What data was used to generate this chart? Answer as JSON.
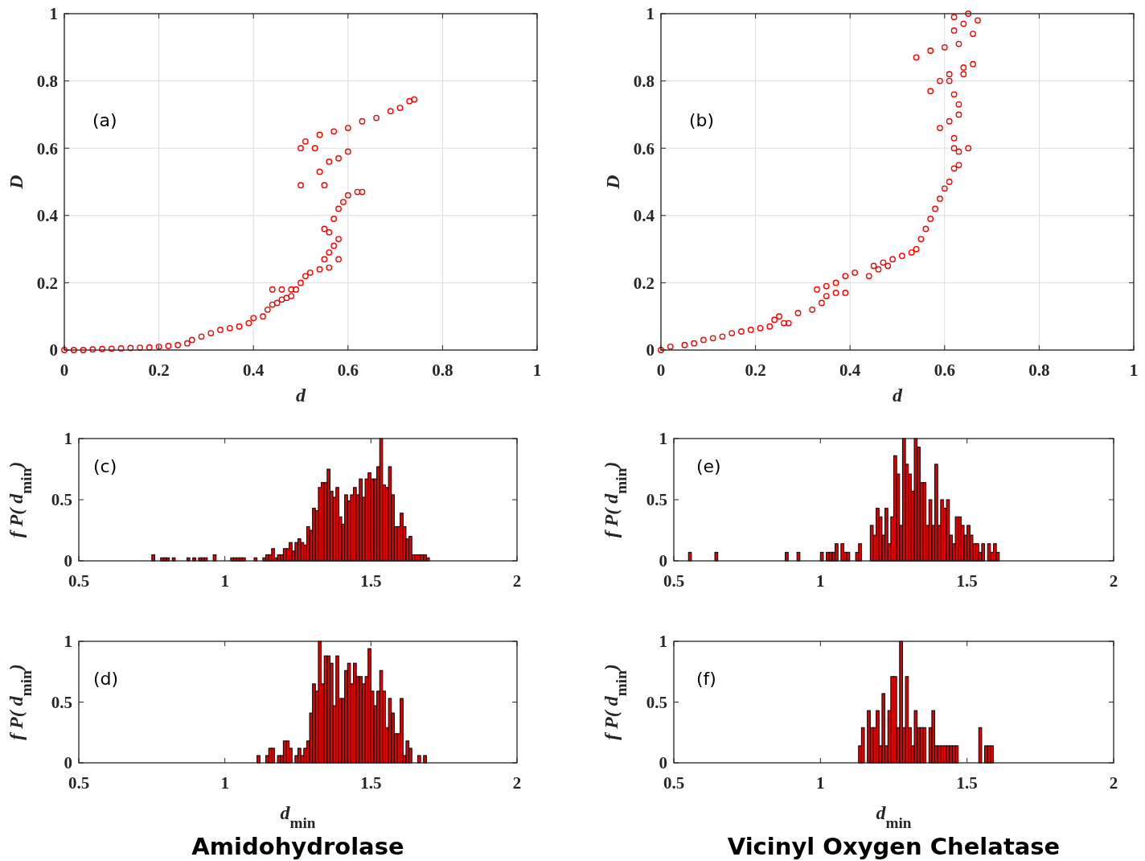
{
  "chart_data": [
    {
      "type": "scatter",
      "xlabel": "d",
      "ylabel": "D",
      "annotations": [
        "(a)"
      ],
      "color": "#ff0000",
      "marker": "circle",
      "grid": true,
      "xlim": [
        0,
        1
      ],
      "ylim": [
        0,
        1
      ],
      "xticks": [
        0,
        0.2,
        0.4,
        0.6,
        0.8,
        1
      ],
      "yticks": [
        0,
        0.2,
        0.4,
        0.6,
        0.8,
        1
      ],
      "x": [
        0,
        0.02,
        0.04,
        0.06,
        0.08,
        0.1,
        0.12,
        0.14,
        0.16,
        0.18,
        0.2,
        0.22,
        0.24,
        0.26,
        0.27,
        0.29,
        0.31,
        0.33,
        0.35,
        0.37,
        0.39,
        0.4,
        0.42,
        0.43,
        0.44,
        0.45,
        0.46,
        0.47,
        0.48,
        0.49,
        0.5,
        0.51,
        0.52,
        0.54,
        0.56,
        0.44,
        0.46,
        0.48,
        0.55,
        0.56,
        0.57,
        0.58,
        0.58,
        0.56,
        0.55,
        0.57,
        0.58,
        0.59,
        0.6,
        0.62,
        0.63,
        0.55,
        0.5,
        0.54,
        0.56,
        0.58,
        0.6,
        0.53,
        0.5,
        0.51,
        0.54,
        0.57,
        0.6,
        0.63,
        0.66,
        0.69,
        0.71,
        0.73,
        0.74
      ],
      "values": [
        0,
        0,
        0,
        0.002,
        0.003,
        0.004,
        0.005,
        0.006,
        0.007,
        0.008,
        0.01,
        0.012,
        0.015,
        0.02,
        0.03,
        0.04,
        0.05,
        0.06,
        0.065,
        0.07,
        0.08,
        0.095,
        0.1,
        0.12,
        0.135,
        0.14,
        0.15,
        0.155,
        0.16,
        0.18,
        0.2,
        0.22,
        0.23,
        0.24,
        0.245,
        0.18,
        0.18,
        0.18,
        0.27,
        0.29,
        0.31,
        0.33,
        0.27,
        0.35,
        0.36,
        0.39,
        0.42,
        0.44,
        0.46,
        0.47,
        0.47,
        0.49,
        0.49,
        0.53,
        0.56,
        0.57,
        0.59,
        0.6,
        0.6,
        0.62,
        0.64,
        0.65,
        0.66,
        0.68,
        0.69,
        0.71,
        0.72,
        0.74,
        0.745
      ]
    },
    {
      "type": "scatter",
      "xlabel": "d",
      "ylabel": "D",
      "annotations": [
        "(b)"
      ],
      "color": "#ff0000",
      "marker": "circle",
      "grid": true,
      "xlim": [
        0,
        1
      ],
      "ylim": [
        0,
        1
      ],
      "xticks": [
        0,
        0.2,
        0.4,
        0.6,
        0.8,
        1
      ],
      "yticks": [
        0,
        0.2,
        0.4,
        0.6,
        0.8,
        1
      ],
      "x": [
        0,
        0.02,
        0.05,
        0.07,
        0.09,
        0.11,
        0.13,
        0.15,
        0.17,
        0.19,
        0.21,
        0.23,
        0.24,
        0.25,
        0.26,
        0.27,
        0.29,
        0.32,
        0.33,
        0.35,
        0.37,
        0.39,
        0.41,
        0.34,
        0.35,
        0.37,
        0.39,
        0.44,
        0.45,
        0.47,
        0.49,
        0.46,
        0.48,
        0.51,
        0.53,
        0.54,
        0.55,
        0.56,
        0.57,
        0.58,
        0.59,
        0.6,
        0.61,
        0.62,
        0.63,
        0.63,
        0.65,
        0.62,
        0.62,
        0.59,
        0.61,
        0.63,
        0.63,
        0.62,
        0.57,
        0.59,
        0.61,
        0.64,
        0.66,
        0.61,
        0.64,
        0.54,
        0.57,
        0.6,
        0.63,
        0.66,
        0.62,
        0.64,
        0.67,
        0.62,
        0.65
      ],
      "values": [
        0,
        0.01,
        0.015,
        0.02,
        0.03,
        0.035,
        0.04,
        0.05,
        0.055,
        0.06,
        0.065,
        0.07,
        0.09,
        0.1,
        0.08,
        0.08,
        0.11,
        0.12,
        0.18,
        0.19,
        0.2,
        0.22,
        0.23,
        0.14,
        0.16,
        0.17,
        0.17,
        0.22,
        0.25,
        0.26,
        0.27,
        0.24,
        0.25,
        0.28,
        0.29,
        0.3,
        0.33,
        0.36,
        0.39,
        0.42,
        0.45,
        0.48,
        0.5,
        0.54,
        0.55,
        0.59,
        0.6,
        0.6,
        0.63,
        0.66,
        0.68,
        0.7,
        0.73,
        0.76,
        0.77,
        0.8,
        0.8,
        0.82,
        0.85,
        0.82,
        0.84,
        0.87,
        0.89,
        0.9,
        0.91,
        0.94,
        0.95,
        0.97,
        0.98,
        0.99,
        1
      ]
    },
    {
      "type": "histogram",
      "ylabel": "f P( d$_{min}$)",
      "annotations": [
        "(c)"
      ],
      "color": "#e60000",
      "xlim": [
        0.5,
        2
      ],
      "ylim": [
        0,
        1
      ],
      "xticks": [
        0.5,
        1,
        1.5,
        2
      ],
      "yticks": [
        0,
        0.5,
        1
      ],
      "bins": [
        0.75,
        0.76,
        0.77,
        0.78,
        0.79,
        0.8,
        0.81,
        0.82,
        0.83,
        0.84,
        0.85,
        0.86,
        0.87,
        0.88,
        0.89,
        0.9,
        0.91,
        0.92,
        0.93,
        0.94,
        0.95,
        0.96,
        0.97,
        0.98,
        0.99,
        1,
        1.01,
        1.02,
        1.03,
        1.04,
        1.05,
        1.06,
        1.07,
        1.08,
        1.09,
        1.1,
        1.11,
        1.12,
        1.13,
        1.14,
        1.15,
        1.16,
        1.17,
        1.18,
        1.19,
        1.2,
        1.21,
        1.22,
        1.23,
        1.24,
        1.25,
        1.26,
        1.27,
        1.28,
        1.29,
        1.3,
        1.31,
        1.32,
        1.33,
        1.34,
        1.35,
        1.36,
        1.37,
        1.38,
        1.39,
        1.4,
        1.41,
        1.42,
        1.43,
        1.44,
        1.45,
        1.46,
        1.47,
        1.48,
        1.49,
        1.5,
        1.51,
        1.52,
        1.53,
        1.54,
        1.55,
        1.56,
        1.57,
        1.58,
        1.59,
        1.6,
        1.61,
        1.62,
        1.63,
        1.64,
        1.65,
        1.66,
        1.67,
        1.68,
        1.69,
        1.7
      ],
      "values": [
        0.05,
        0,
        0,
        0.025,
        0.025,
        0.025,
        0,
        0.025,
        0,
        0,
        0,
        0,
        0.025,
        0,
        0.025,
        0,
        0.025,
        0.025,
        0.025,
        0,
        0,
        0.05,
        0,
        0,
        0,
        0,
        0,
        0.025,
        0.025,
        0.025,
        0.025,
        0.025,
        0,
        0,
        0,
        0.025,
        0,
        0,
        0.025,
        0.05,
        0.05,
        0.1,
        0.025,
        0.05,
        0.05,
        0.1,
        0.1,
        0.15,
        0.08,
        0.15,
        0.18,
        0.15,
        0.13,
        0.28,
        0.25,
        0.43,
        0.41,
        0.6,
        0.64,
        0.64,
        0.75,
        0.57,
        0.52,
        0.6,
        0.36,
        0.3,
        0.54,
        0.49,
        0.54,
        0.6,
        0.54,
        0.67,
        0.52,
        0.67,
        0.72,
        0.67,
        0.67,
        0.77,
        1,
        0.62,
        0.6,
        0.77,
        0.54,
        0.28,
        0.28,
        0.39,
        0.28,
        0.18,
        0.2,
        0.05,
        0.05,
        0.05,
        0.05,
        0.05,
        0.025
      ]
    },
    {
      "type": "histogram",
      "ylabel": "f P( d$_{min}$)",
      "annotations": [
        "(e)"
      ],
      "color": "#e60000",
      "xlim": [
        0.5,
        2
      ],
      "ylim": [
        0,
        1
      ],
      "xticks": [
        0.5,
        1,
        1.5,
        2
      ],
      "yticks": [
        0,
        0.5,
        1
      ],
      "bins": [
        0.55,
        0.56,
        0.57,
        0.58,
        0.59,
        0.6,
        0.61,
        0.62,
        0.63,
        0.64,
        0.65,
        0.66,
        0.67,
        0.68,
        0.69,
        0.7,
        0.71,
        0.72,
        0.73,
        0.74,
        0.75,
        0.76,
        0.77,
        0.78,
        0.79,
        0.8,
        0.81,
        0.82,
        0.83,
        0.84,
        0.85,
        0.86,
        0.87,
        0.88,
        0.89,
        0.9,
        0.91,
        0.92,
        0.93,
        0.94,
        0.95,
        0.96,
        0.97,
        0.98,
        0.99,
        1,
        1.01,
        1.02,
        1.03,
        1.04,
        1.05,
        1.06,
        1.07,
        1.08,
        1.09,
        1.1,
        1.11,
        1.12,
        1.13,
        1.14,
        1.15,
        1.16,
        1.17,
        1.18,
        1.19,
        1.2,
        1.21,
        1.22,
        1.23,
        1.24,
        1.25,
        1.26,
        1.27,
        1.28,
        1.29,
        1.3,
        1.31,
        1.32,
        1.33,
        1.34,
        1.35,
        1.36,
        1.37,
        1.38,
        1.39,
        1.4,
        1.41,
        1.42,
        1.43,
        1.44,
        1.45,
        1.46,
        1.47,
        1.48,
        1.49,
        1.5,
        1.51,
        1.52,
        1.53,
        1.54,
        1.55,
        1.56,
        1.57,
        1.58,
        1.59,
        1.6,
        1.61
      ],
      "values": [
        0.07,
        0,
        0,
        0,
        0,
        0,
        0,
        0,
        0,
        0.07,
        0,
        0,
        0,
        0,
        0,
        0,
        0,
        0,
        0,
        0,
        0,
        0,
        0,
        0,
        0,
        0,
        0,
        0,
        0,
        0,
        0,
        0,
        0,
        0.07,
        0,
        0,
        0,
        0.07,
        0,
        0,
        0,
        0,
        0,
        0,
        0,
        0.07,
        0,
        0.07,
        0.07,
        0.07,
        0.14,
        0,
        0.14,
        0.07,
        0.07,
        0,
        0,
        0.07,
        0.14,
        0,
        0,
        0,
        0.29,
        0.21,
        0.43,
        0.36,
        0.21,
        0.43,
        0.14,
        0.36,
        0.86,
        0.71,
        0.29,
        1,
        0.79,
        0.71,
        0.57,
        1,
        0.93,
        0.64,
        0.64,
        0.29,
        0.5,
        0.29,
        0.79,
        0.29,
        0.5,
        0.43,
        0.5,
        0.21,
        0.14,
        0.36,
        0.36,
        0.29,
        0.21,
        0.29,
        0.21,
        0.14,
        0.14,
        0.07,
        0.14,
        0,
        0.14,
        0.07,
        0.14,
        0.07
      ]
    },
    {
      "type": "histogram",
      "xlabel": "d$_{min}$",
      "ylabel": "f P( d$_{min}$)",
      "annotations": [
        "(d)",
        "Amidohydrolase"
      ],
      "color": "#e60000",
      "xlim": [
        0.5,
        2
      ],
      "ylim": [
        0,
        1
      ],
      "xticks": [
        0.5,
        1,
        1.5,
        2
      ],
      "yticks": [
        0,
        0.5,
        1
      ],
      "bins": [
        1.11,
        1.12,
        1.13,
        1.14,
        1.15,
        1.16,
        1.17,
        1.18,
        1.19,
        1.2,
        1.21,
        1.22,
        1.23,
        1.24,
        1.25,
        1.26,
        1.27,
        1.28,
        1.29,
        1.3,
        1.31,
        1.32,
        1.33,
        1.34,
        1.35,
        1.36,
        1.37,
        1.38,
        1.39,
        1.4,
        1.41,
        1.42,
        1.43,
        1.44,
        1.45,
        1.46,
        1.47,
        1.48,
        1.49,
        1.5,
        1.51,
        1.52,
        1.53,
        1.54,
        1.55,
        1.56,
        1.57,
        1.58,
        1.59,
        1.6,
        1.61,
        1.62,
        1.63,
        1.64,
        1.65,
        1.66,
        1.67,
        1.68,
        1.69
      ],
      "values": [
        0.06,
        0,
        0,
        0.06,
        0.12,
        0.12,
        0,
        0.06,
        0.06,
        0.18,
        0.18,
        0.12,
        0,
        0.06,
        0.12,
        0.06,
        0.12,
        0.18,
        0.41,
        0.65,
        0.59,
        1,
        0.65,
        0.88,
        0.88,
        0.82,
        0.47,
        0.88,
        0.53,
        0.53,
        0.76,
        0.82,
        0.65,
        0.82,
        0.71,
        0.71,
        0.65,
        0.71,
        0.94,
        0.59,
        0.47,
        0.59,
        0.76,
        0.59,
        0.29,
        0.53,
        0.41,
        0.24,
        0.24,
        0.53,
        0.06,
        0.18,
        0.12,
        0,
        0,
        0.06,
        0,
        0.06
      ]
    },
    {
      "type": "histogram",
      "xlabel": "d$_{min}$",
      "ylabel": "f P( d$_{min}$)",
      "annotations": [
        "(f)",
        "Vicinyl Oxygen Chelatase"
      ],
      "color": "#e60000",
      "xlim": [
        0.5,
        2
      ],
      "ylim": [
        0,
        1
      ],
      "xticks": [
        0.5,
        1,
        1.5,
        2
      ],
      "yticks": [
        0,
        0.5,
        1
      ],
      "bins": [
        1.13,
        1.14,
        1.15,
        1.16,
        1.17,
        1.18,
        1.19,
        1.2,
        1.21,
        1.22,
        1.23,
        1.24,
        1.25,
        1.26,
        1.27,
        1.28,
        1.29,
        1.3,
        1.31,
        1.32,
        1.33,
        1.34,
        1.35,
        1.36,
        1.37,
        1.38,
        1.39,
        1.4,
        1.41,
        1.42,
        1.43,
        1.44,
        1.45,
        1.46,
        1.47,
        1.48,
        1.49,
        1.5,
        1.51,
        1.52,
        1.53,
        1.54,
        1.55,
        1.56,
        1.57,
        1.58,
        1.59
      ],
      "values": [
        0.14,
        0.29,
        0,
        0.43,
        0.29,
        0.29,
        0.43,
        0.14,
        0.57,
        0.14,
        0.43,
        0.71,
        0.71,
        0.29,
        1,
        0.29,
        0.71,
        0.29,
        0.14,
        0.43,
        0.29,
        0.29,
        0.29,
        0,
        0.29,
        0.43,
        0.14,
        0.14,
        0.14,
        0.14,
        0.14,
        0.14,
        0.14,
        0.14,
        0,
        0,
        0,
        0,
        0,
        0,
        0,
        0.29,
        0,
        0.14,
        0.14,
        0.14
      ]
    }
  ]
}
